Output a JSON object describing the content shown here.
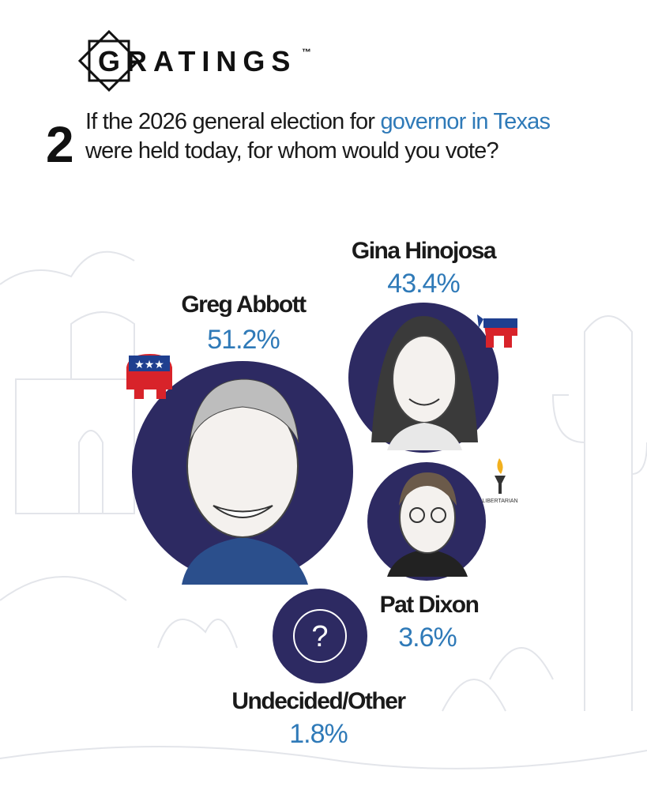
{
  "header": {
    "brand": "GRATINGS",
    "trademark": "™"
  },
  "question": {
    "number": "2",
    "line1": "If the 2026 general election for ",
    "highlight": "governor in Texas",
    "line2": "were held today, for whom would you vote?"
  },
  "candidates": [
    {
      "name": "Greg Abbott",
      "share": "51.2%"
    },
    {
      "name": "Gina Hinojosa",
      "share": "43.4%"
    },
    {
      "name": "Pat Dixon",
      "share": "3.6%"
    },
    {
      "name": "Undecided/Other",
      "share": "1.8%"
    }
  ],
  "party_label": "LIBERTARIAN"
}
